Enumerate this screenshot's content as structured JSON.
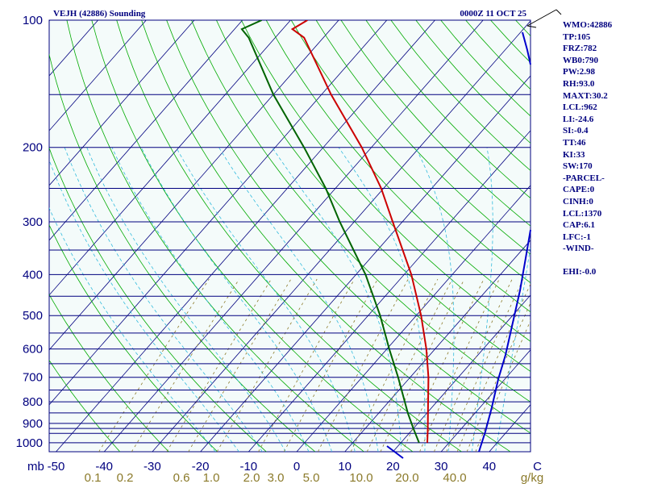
{
  "header": {
    "station": "VEJH (42886) Sounding",
    "time": "0000Z 11 OCT 25"
  },
  "indices": [
    "WMO:42886",
    "TP:105",
    "FRZ:782",
    "WB0:790",
    "PW:2.98",
    "RH:93.0",
    "MAXT:30.2",
    "LCL:962",
    "LI:-24.6",
    "SI:-0.4",
    "TT:46",
    "KI:33",
    "SW:170",
    "-PARCEL-",
    "CAPE:0",
    "CINH:0",
    "LCL:1370",
    "CAP:6.1",
    "LFC:-1",
    "-WIND-",
    "",
    "EHI:-0.0"
  ],
  "chart_data": {
    "type": "line",
    "title": "",
    "xlabel": "",
    "ylabel": "mb",
    "pressure_range": [
      1050,
      100
    ],
    "temperature_range": [
      -50,
      50
    ],
    "pressure_labels": [
      "100",
      "200",
      "300",
      "400",
      "500",
      "600",
      "700",
      "800",
      "900",
      "1000"
    ],
    "pressure_levels": [
      100,
      150,
      200,
      250,
      300,
      350,
      400,
      450,
      500,
      550,
      600,
      650,
      700,
      750,
      800,
      850,
      900,
      925,
      950,
      1000
    ],
    "temperature_labels": [
      "-50",
      "-40",
      "-30",
      "-20",
      "-10",
      "0",
      "10",
      "20",
      "30",
      "40",
      "C"
    ],
    "temperature_ticks": [
      -50,
      -40,
      -30,
      -20,
      -10,
      0,
      10,
      20,
      30,
      40,
      50
    ],
    "mixing_ratio_labels": [
      "0.1",
      "0.2",
      "0.6",
      "1.0",
      "2.0",
      "3.0",
      "5.0",
      "10.0",
      "20.0",
      "40.0",
      "g/kg"
    ],
    "mixing_ratio_values": [
      0.1,
      0.2,
      0.6,
      1.0,
      2.0,
      3.0,
      5.0,
      10.0,
      20.0,
      40.0
    ],
    "series": [
      {
        "values": [
          {
            "p": 1000,
            "t": 25.5
          },
          {
            "p": 925,
            "t": 23.0
          },
          {
            "p": 850,
            "t": 20.2
          },
          {
            "p": 700,
            "t": 13.8
          },
          {
            "p": 600,
            "t": 8.2
          },
          {
            "p": 500,
            "t": 1.0
          },
          {
            "p": 400,
            "t": -8.5
          },
          {
            "p": 300,
            "t": -22.0
          },
          {
            "p": 250,
            "t": -30.5
          },
          {
            "p": 200,
            "t": -42.0
          },
          {
            "p": 150,
            "t": -58.0
          },
          {
            "p": 110,
            "t": -74.0
          },
          {
            "p": 105,
            "t": -78.0
          },
          {
            "p": 100,
            "t": -76.5
          }
        ]
      },
      {
        "values": [
          {
            "p": 1000,
            "t": 23.8
          },
          {
            "p": 925,
            "t": 20.0
          },
          {
            "p": 850,
            "t": 16.0
          },
          {
            "p": 700,
            "t": 7.5
          },
          {
            "p": 600,
            "t": 0.5
          },
          {
            "p": 500,
            "t": -7.5
          },
          {
            "p": 400,
            "t": -18.0
          },
          {
            "p": 300,
            "t": -33.0
          },
          {
            "p": 250,
            "t": -42.0
          },
          {
            "p": 200,
            "t": -54.0
          },
          {
            "p": 150,
            "t": -70.0
          },
          {
            "p": 110,
            "t": -85.5
          },
          {
            "p": 105,
            "t": -88.5
          },
          {
            "p": 100,
            "t": -86.0
          }
        ]
      }
    ],
    "colors": {
      "temperature": "#cc0000",
      "dewpoint": "#006400",
      "isobar": "#00007f",
      "isotherm": "#00007f",
      "dry_adiabat": "#00aa00",
      "moist_adiabat": "#33bbdd",
      "mixing_ratio": "#8b7a2a",
      "wind": "#0000cc",
      "background": "#f4fbfa"
    },
    "grid": true
  }
}
